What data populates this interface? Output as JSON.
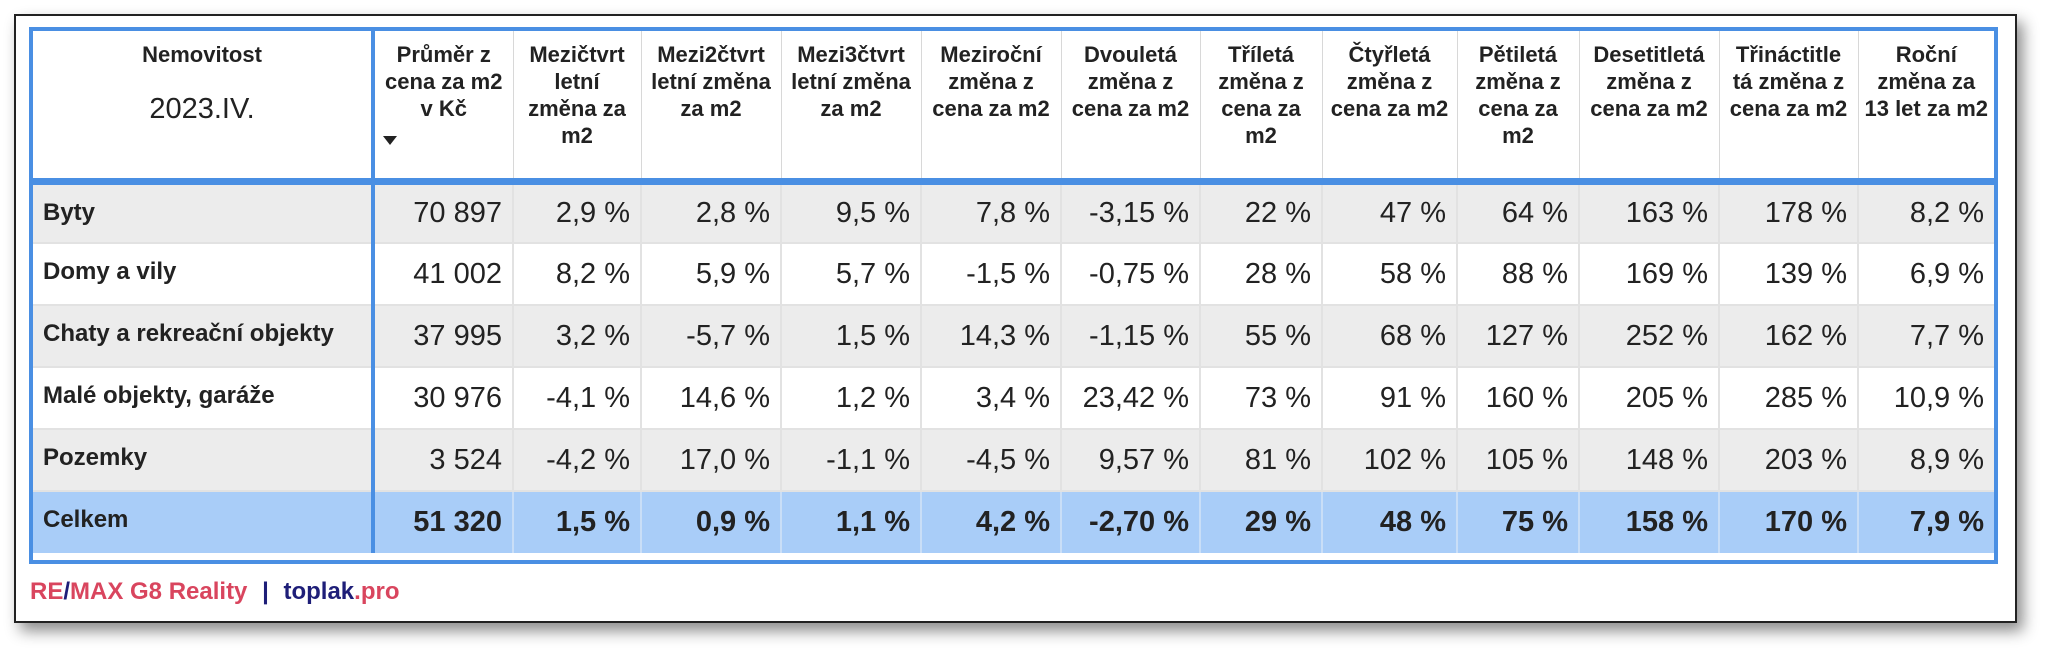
{
  "header": {
    "first_col_title": "Nemovitost",
    "first_col_period": "2023.IV.",
    "columns": [
      "Průměr z cena za m2 v Kč",
      "Mezičtvrt letní změna za m2",
      "Mezi2čtvrt letní změna za m2",
      "Mezi3čtvrt letní změna za m2",
      "Meziroční změna z cena za m2",
      "Dvouletá změna z cena za m2",
      "Tříletá změna z cena za m2",
      "Čtyřletá změna z cena za m2",
      "Pětiletá změna z cena za m2",
      "Desetitletá změna z cena za m2",
      "Třináctitle tá změna z cena za m2",
      "Roční změna za 13 let za m2"
    ]
  },
  "rows": [
    {
      "label": "Byty",
      "values": [
        "70 897",
        "2,9 %",
        "2,8 %",
        "9,5 %",
        "7,8 %",
        "-3,15 %",
        "22 %",
        "47 %",
        "64 %",
        "163 %",
        "178 %",
        "8,2 %"
      ]
    },
    {
      "label": "Domy a vily",
      "values": [
        "41 002",
        "8,2 %",
        "5,9 %",
        "5,7 %",
        "-1,5 %",
        "-0,75 %",
        "28 %",
        "58 %",
        "88 %",
        "169 %",
        "139 %",
        "6,9 %"
      ]
    },
    {
      "label": "Chaty a rekreační objekty",
      "values": [
        "37 995",
        "3,2 %",
        "-5,7 %",
        "1,5 %",
        "14,3 %",
        "-1,15 %",
        "55 %",
        "68 %",
        "127 %",
        "252 %",
        "162 %",
        "7,7 %"
      ]
    },
    {
      "label": "Malé objekty, garáže",
      "values": [
        "30 976",
        "-4,1 %",
        "14,6 %",
        "1,2 %",
        "3,4 %",
        "23,42 %",
        "73 %",
        "91 %",
        "160 %",
        "205 %",
        "285 %",
        "10,9 %"
      ]
    },
    {
      "label": "Pozemky",
      "values": [
        "3 524",
        "-4,2 %",
        "17,0 %",
        "-1,1 %",
        "-4,5 %",
        "9,57 %",
        "81 %",
        "102 %",
        "105 %",
        "148 %",
        "203 %",
        "8,9 %"
      ]
    }
  ],
  "total": {
    "label": "Celkem",
    "values": [
      "51 320",
      "1,5 %",
      "0,9 %",
      "1,1 %",
      "4,2 %",
      "-2,70 %",
      "29 %",
      "48 %",
      "75 %",
      "158 %",
      "170 %",
      "7,9 %"
    ]
  },
  "footer": {
    "brand_part1": "RE",
    "brand_slash": "/",
    "brand_part2": "MAX G8 Reality",
    "separator": "|",
    "site_name": "toplak",
    "site_tld": ".pro"
  },
  "colors": {
    "frame_blue": "#4a8fe3",
    "total_row_bg": "#a9cdf8",
    "stripe_gray": "#ececec",
    "brand_red": "#d9455e",
    "brand_navy": "#1e1e78"
  },
  "icons": {
    "sort": "sort-descending-icon"
  }
}
